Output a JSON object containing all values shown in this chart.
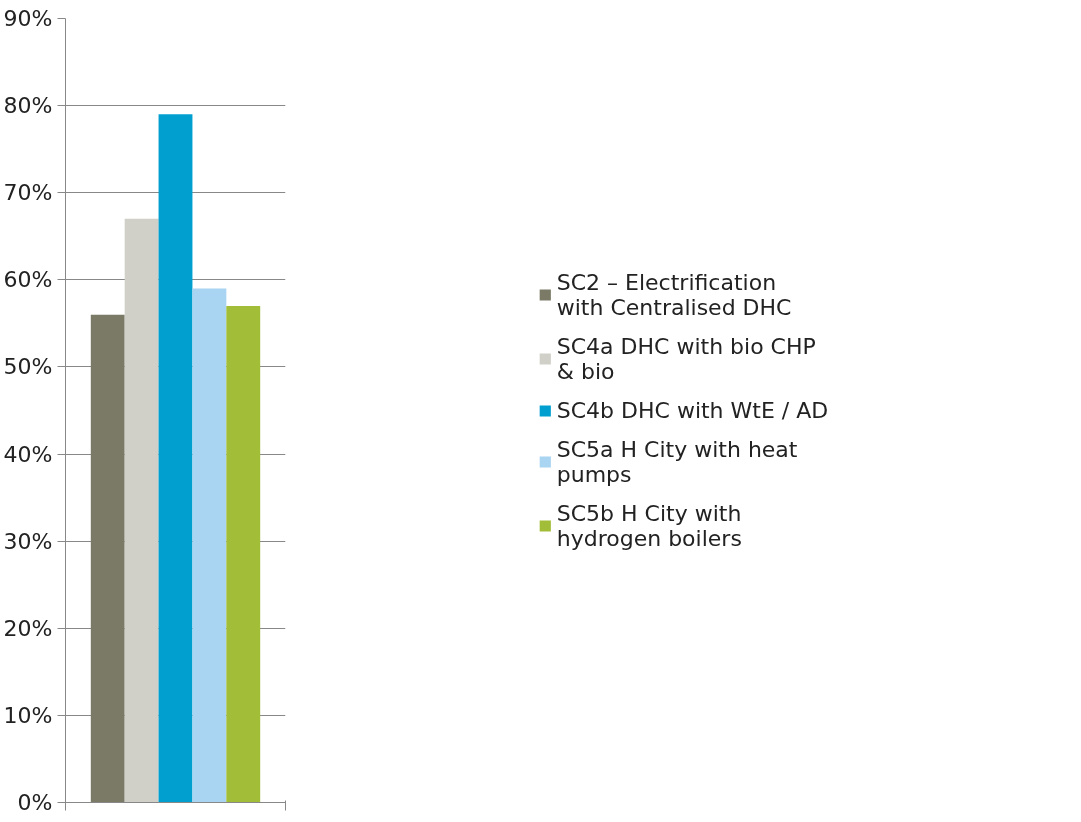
{
  "chart_data": {
    "type": "bar",
    "categories": [
      null
    ],
    "series": [
      {
        "name": "SC2 – Electrification with Centralised DHC",
        "color": "#7a7a66",
        "values": [
          56
        ]
      },
      {
        "name": "SC4a DHC with bio CHP & bio",
        "color": "#d0d0c8",
        "values": [
          67
        ]
      },
      {
        "name": "SC4b DHC with WtE / AD",
        "color": "#009fcf",
        "values": [
          79
        ]
      },
      {
        "name": "SC5a H City with heat pumps",
        "color": "#a9d4f2",
        "values": [
          59
        ]
      },
      {
        "name": "SC5b H City with hydrogen boilers",
        "color": "#a2bd37",
        "values": [
          57
        ]
      }
    ],
    "ylim": [
      0,
      90
    ],
    "yticks": [
      {
        "value": 0,
        "label": "0%"
      },
      {
        "value": 10,
        "label": "10%"
      },
      {
        "value": 20,
        "label": "20%"
      },
      {
        "value": 30,
        "label": "30%"
      },
      {
        "value": 40,
        "label": "40%"
      },
      {
        "value": 50,
        "label": "50%"
      },
      {
        "value": 60,
        "label": "60%"
      },
      {
        "value": 70,
        "label": "70%"
      },
      {
        "value": 80,
        "label": "80%"
      },
      {
        "value": 90,
        "label": "90%"
      }
    ],
    "grid": "y",
    "legend": "right"
  }
}
